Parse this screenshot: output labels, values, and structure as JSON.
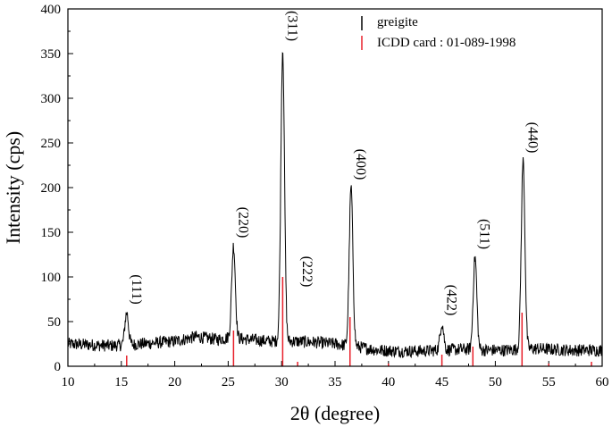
{
  "chart_data": {
    "type": "line",
    "xlabel": "2θ (degree)",
    "ylabel": "Intensity (cps)",
    "xlim": [
      10,
      60
    ],
    "ylim": [
      0,
      400
    ],
    "xticks": [
      10,
      15,
      20,
      25,
      30,
      35,
      40,
      45,
      50,
      55,
      60
    ],
    "yticks": [
      0,
      50,
      100,
      150,
      200,
      250,
      300,
      350,
      400
    ],
    "grid": false,
    "legend": {
      "position": "top-right",
      "entries": [
        {
          "label": "greigite",
          "color": "#000000"
        },
        {
          "label": "ICDD card : 01-089-1998",
          "color": "#e8202a"
        }
      ]
    },
    "series": [
      {
        "name": "greigite",
        "color": "#000000",
        "baseline": [
          [
            10,
            25
          ],
          [
            14,
            23
          ],
          [
            17,
            25
          ],
          [
            20,
            28
          ],
          [
            22,
            33
          ],
          [
            24,
            30
          ],
          [
            25,
            32
          ],
          [
            27,
            30
          ],
          [
            29,
            28
          ],
          [
            31,
            28
          ],
          [
            33,
            27
          ],
          [
            35,
            25
          ],
          [
            37,
            22
          ],
          [
            39,
            18
          ],
          [
            41,
            17
          ],
          [
            43,
            17
          ],
          [
            45,
            18
          ],
          [
            47,
            19
          ],
          [
            49,
            18
          ],
          [
            51,
            18
          ],
          [
            53,
            20
          ],
          [
            55,
            19
          ],
          [
            57,
            18
          ],
          [
            59,
            18
          ],
          [
            60,
            18
          ]
        ],
        "peaks": [
          [
            15.5,
            60
          ],
          [
            25.5,
            135
          ],
          [
            30.1,
            355
          ],
          [
            36.5,
            200
          ],
          [
            45.0,
            48
          ],
          [
            48.1,
            122
          ],
          [
            52.6,
            230
          ]
        ]
      },
      {
        "name": "ICDD card : 01-089-1998",
        "color": "#e8202a",
        "type": "sticks",
        "x": [
          15.5,
          25.5,
          30.1,
          31.5,
          36.4,
          40.0,
          45.0,
          47.9,
          52.5,
          55.0,
          59.0
        ],
        "y": [
          12,
          40,
          100,
          5,
          55,
          3,
          13,
          22,
          60,
          3,
          5
        ]
      }
    ],
    "annotations": [
      {
        "text": "(111)",
        "x": 15.5,
        "y": 60
      },
      {
        "text": "(220)",
        "x": 25.5,
        "y": 135
      },
      {
        "text": "(311)",
        "x": 30.1,
        "y": 355
      },
      {
        "text": "(222)",
        "x": 31.5,
        "y": 80
      },
      {
        "text": "(400)",
        "x": 36.5,
        "y": 200
      },
      {
        "text": "(422)",
        "x": 45.0,
        "y": 48
      },
      {
        "text": "(511)",
        "x": 48.1,
        "y": 122
      },
      {
        "text": "(440)",
        "x": 52.6,
        "y": 230
      }
    ]
  }
}
